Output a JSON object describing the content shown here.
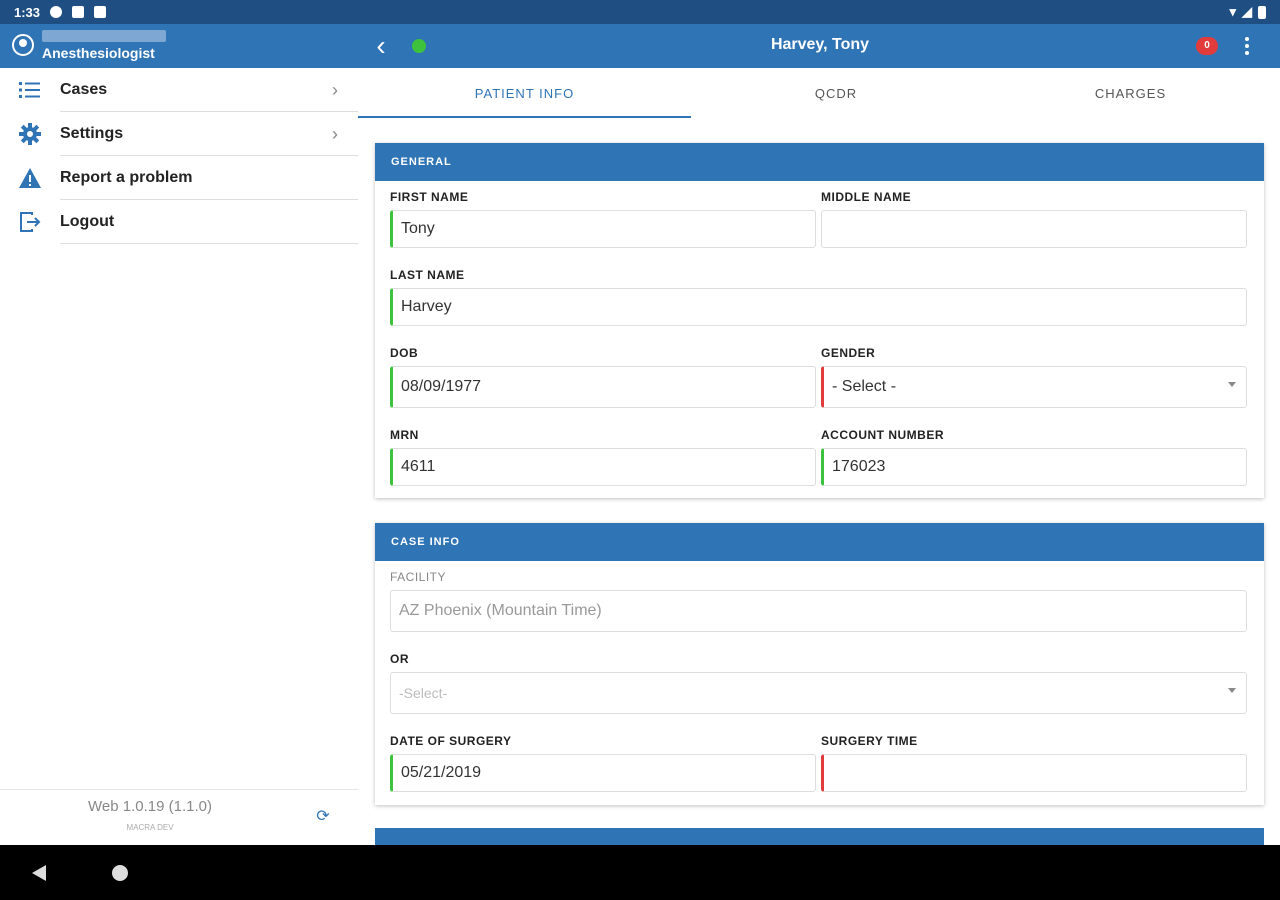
{
  "status_bar": {
    "time": "1:33"
  },
  "app_bar": {
    "user_role": "Anesthesiologist",
    "patient_name": "Harvey, Tony",
    "notification_count": "0"
  },
  "sidebar": {
    "items": [
      {
        "label": "Cases",
        "icon": "list-icon",
        "has_chevron": true
      },
      {
        "label": "Settings",
        "icon": "gear-icon",
        "has_chevron": true
      },
      {
        "label": "Report a problem",
        "icon": "warning-icon",
        "has_chevron": false
      },
      {
        "label": "Logout",
        "icon": "logout-icon",
        "has_chevron": false
      }
    ],
    "version": "Web 1.0.19 (1.1.0)",
    "environment": "MACRA DEV"
  },
  "tabs": [
    {
      "label": "PATIENT INFO",
      "active": true
    },
    {
      "label": "QCDR",
      "active": false
    },
    {
      "label": "CHARGES",
      "active": false
    }
  ],
  "general": {
    "header": "GENERAL",
    "first_name": {
      "label": "FIRST NAME",
      "value": "Tony"
    },
    "middle_name": {
      "label": "MIDDLE NAME",
      "value": ""
    },
    "last_name": {
      "label": "LAST NAME",
      "value": "Harvey"
    },
    "dob": {
      "label": "DOB",
      "value": "08/09/1977"
    },
    "gender": {
      "label": "GENDER",
      "value": "- Select -"
    },
    "mrn": {
      "label": "MRN",
      "value": "4611"
    },
    "account_number": {
      "label": "ACCOUNT NUMBER",
      "value": "176023"
    }
  },
  "case_info": {
    "header": "CASE INFO",
    "facility": {
      "label": "FACILITY",
      "value": "AZ Phoenix (Mountain Time)"
    },
    "or": {
      "label": "OR",
      "value": "-Select-"
    },
    "date_of_surgery": {
      "label": "DATE OF SURGERY",
      "value": "05/21/2019"
    },
    "surgery_time": {
      "label": "SURGERY TIME",
      "value": ""
    }
  },
  "colors": {
    "primary": "#2f74b5",
    "status_bar": "#1f4f82",
    "valid": "#3cc23c",
    "invalid": "#e23b3b"
  }
}
